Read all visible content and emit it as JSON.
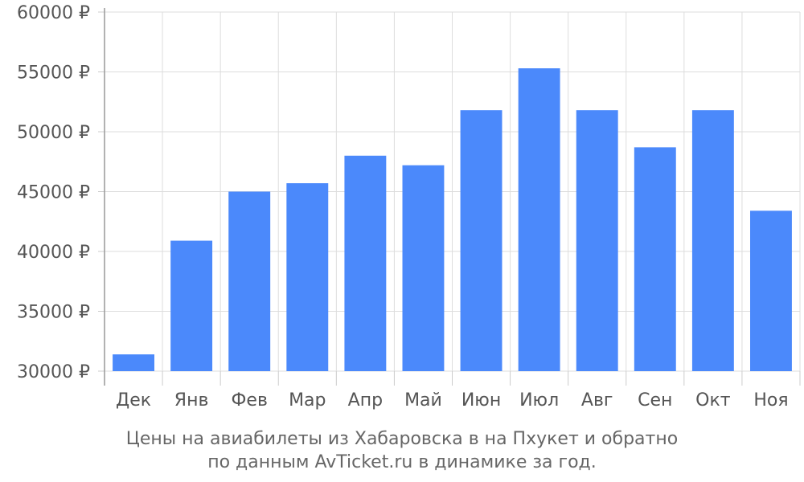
{
  "chart_data": {
    "type": "bar",
    "categories": [
      "Дек",
      "Янв",
      "Фев",
      "Мар",
      "Апр",
      "Май",
      "Июн",
      "Июл",
      "Авг",
      "Сен",
      "Окт",
      "Ноя"
    ],
    "values": [
      31400,
      40900,
      45000,
      45700,
      48000,
      47200,
      51800,
      55300,
      51800,
      48700,
      51800,
      43400
    ],
    "ylim": [
      30000,
      60000
    ],
    "yticks": [
      30000,
      35000,
      40000,
      45000,
      50000,
      55000,
      60000
    ],
    "ytick_suffix": " ₽",
    "bar_color": "#4b89fb",
    "grid": true,
    "title": "",
    "xlabel": "",
    "ylabel": ""
  },
  "caption": {
    "line1": "Цены на авиабилеты из Хабаровска в на Пхукет и обратно",
    "line2": "по данным AvTicket.ru в динамике за год."
  }
}
